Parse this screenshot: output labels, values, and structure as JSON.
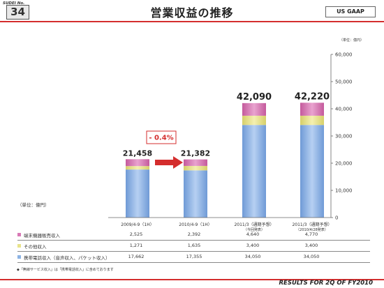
{
  "header": {
    "slide_label": "SUDEI No.",
    "slide_number": "34",
    "title": "営業収益の推移",
    "gaap": "US GAAP"
  },
  "units": {
    "top": "（単位：億円）",
    "left": "（単位：億円）"
  },
  "footer": "RESULTS FOR 2Q OF FY2010",
  "note": "◆「無線サービス収入」は「携帯電話収入」に含めております",
  "colors": {
    "handset": "#d879b6",
    "other": "#e8e38a",
    "mobile": "#8cb3e4",
    "accent": "#d42d2d"
  },
  "chart_data": {
    "type": "bar",
    "stacked": true,
    "categories": [
      "2009/4-9（1H）",
      "2010/4-9（1H）",
      "2011/3（通期予想）",
      "2011/3（通期予想）"
    ],
    "category_sublabels": [
      "",
      "",
      "（今回発表）",
      "（2010/4/28発表）"
    ],
    "series": [
      {
        "name": "携帯電話収入（音声収入、パケット収入）",
        "values": [
          17662,
          17355,
          34050,
          34050
        ]
      },
      {
        "name": "その他収入",
        "values": [
          1271,
          1635,
          3400,
          3400
        ]
      },
      {
        "name": "端末機器販売収入",
        "values": [
          2525,
          2392,
          4640,
          4770
        ]
      }
    ],
    "totals": [
      "21,458",
      "21,382",
      "42,090",
      "42,220"
    ],
    "table_values": [
      [
        "2,525",
        "2,392",
        "4,640",
        "4,770"
      ],
      [
        "1,271",
        "1,635",
        "3,400",
        "3,400"
      ],
      [
        "17,662",
        "17,355",
        "34,050",
        "34,050"
      ]
    ],
    "ylim": [
      0,
      60000
    ],
    "yticks": [
      0,
      10000,
      20000,
      30000,
      40000,
      50000,
      60000
    ],
    "ytick_labels": [
      "0",
      "10,000",
      "20,000",
      "30,000",
      "40,000",
      "50,000",
      "60,000"
    ],
    "annotation": "- 0.4%",
    "grid": false,
    "legend": "table-bottom"
  }
}
